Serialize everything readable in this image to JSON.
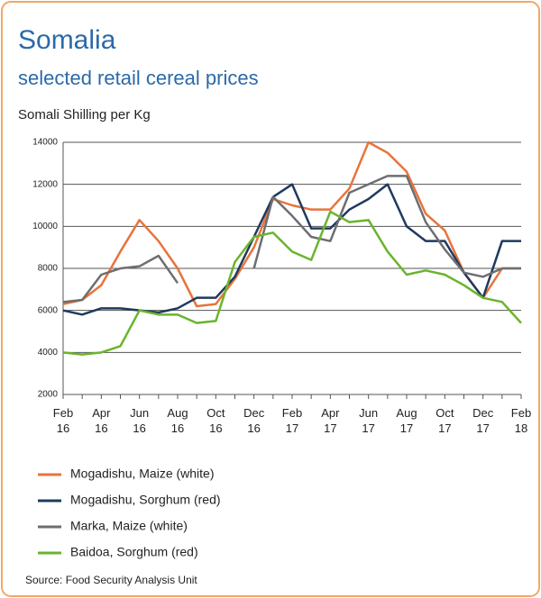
{
  "chart_data": {
    "type": "line",
    "title": "Somalia",
    "subtitle": "selected retail cereal prices",
    "y_axis_label": "Somali Shilling per Kg",
    "source": "Source: Food Security Analysis Unit",
    "categories": [
      "Feb 16",
      null,
      "Apr 16",
      null,
      "Jun 16",
      null,
      "Aug 16",
      null,
      "Oct 16",
      null,
      "Dec 16",
      null,
      "Feb 17",
      null,
      "Apr 17",
      null,
      "Jun 17",
      null,
      "Aug 17",
      null,
      "Oct 17",
      null,
      "Dec 17",
      null,
      "Feb 18"
    ],
    "series": [
      {
        "name": "Mogadishu, Maize (white)",
        "color": "#e8743b",
        "values": [
          6300,
          6500,
          7200,
          8800,
          10300,
          9300,
          8000,
          6200,
          6300,
          7500,
          9000,
          11300,
          11000,
          10800,
          10800,
          11800,
          14000,
          13500,
          12600,
          10600,
          9800,
          7800,
          6600,
          8000,
          8000
        ]
      },
      {
        "name": "Mogadishu, Sorghum (red)",
        "color": "#1f3a5f",
        "values": [
          6000,
          5800,
          6100,
          6100,
          6000,
          5900,
          6100,
          6600,
          6600,
          7600,
          9500,
          11400,
          12000,
          9900,
          9900,
          10800,
          11300,
          12000,
          10000,
          9300,
          9300,
          7800,
          6600,
          9300,
          9300
        ]
      },
      {
        "name": "Marka, Maize (white)",
        "color": "#6d6e71",
        "values": [
          6400,
          6500,
          7700,
          8000,
          8100,
          8600,
          7300,
          null,
          null,
          null,
          8000,
          11400,
          10500,
          9500,
          9300,
          11600,
          12000,
          12400,
          12400,
          10200,
          8900,
          7800,
          7600,
          8000,
          8000
        ]
      },
      {
        "name": "Baidoa, Sorghum (red)",
        "color": "#6ab42d",
        "values": [
          4000,
          3900,
          4000,
          4300,
          6000,
          5800,
          5800,
          5400,
          5500,
          8300,
          9500,
          9700,
          8800,
          8400,
          10700,
          10200,
          10300,
          8800,
          7700,
          7900,
          7700,
          7200,
          6600,
          6400,
          5400
        ]
      }
    ],
    "ylim": [
      2000,
      14000
    ],
    "yticks": [
      2000,
      4000,
      6000,
      8000,
      10000,
      12000,
      14000
    ],
    "grid": true
  }
}
